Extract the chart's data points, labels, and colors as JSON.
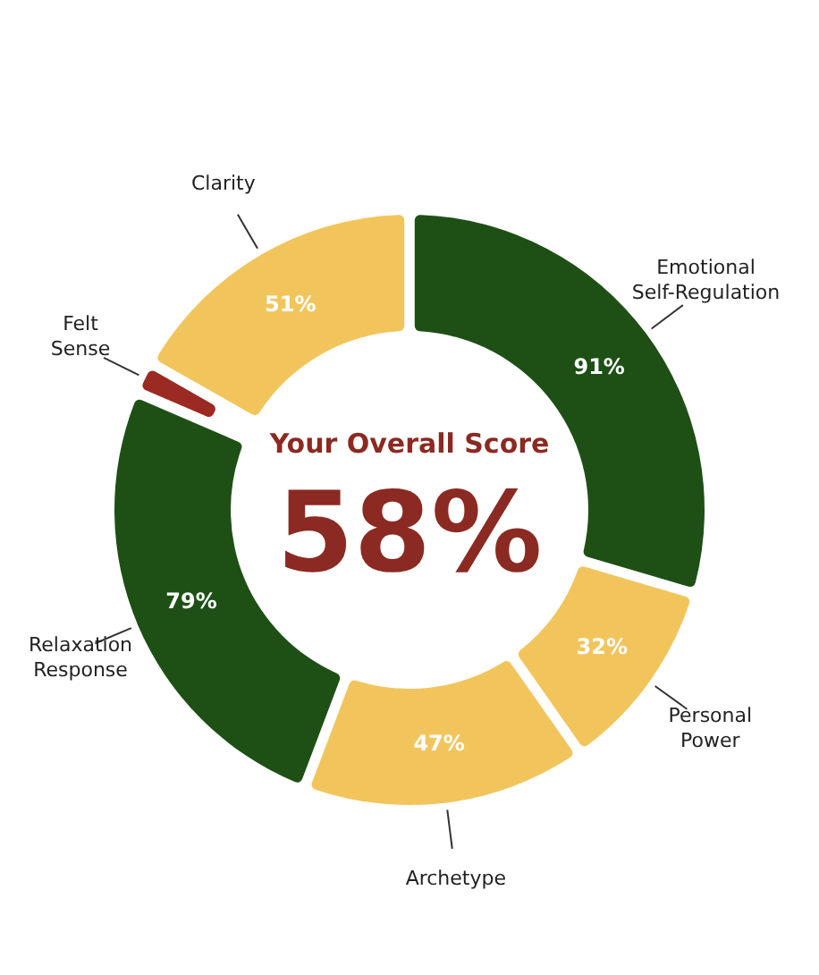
{
  "chart_data": {
    "type": "donut",
    "categories": [
      "Emotional Self-Regulation",
      "Personal Power",
      "Archetype",
      "Relaxation Response",
      "Felt Sense",
      "Clarity"
    ],
    "values": [
      91,
      32,
      47,
      79,
      4,
      51
    ],
    "value_labels": [
      "91%",
      "32%",
      "47%",
      "79%",
      null,
      "51%"
    ],
    "colors": [
      "#1e5016",
      "#f2c55c",
      "#f2c55c",
      "#1e5016",
      "#9b2a23",
      "#f2c55c"
    ],
    "annotations": [
      "Your Overall Score",
      "58%"
    ]
  }
}
